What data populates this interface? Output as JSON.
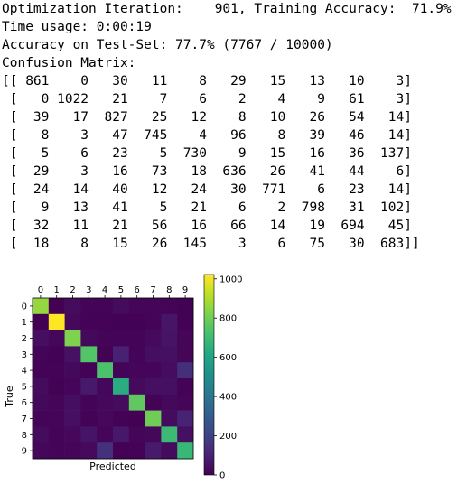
{
  "output": {
    "lines": [
      "Optimization Iteration:    901, Training Accuracy:  71.9%",
      "Time usage: 0:00:19",
      "Accuracy on Test-Set: 77.7% (7767 / 10000)",
      "Confusion Matrix:",
      "[[ 861    0   30   11    8   29   15   13   10    3]",
      " [   0 1022   21    7    6    2    4    9   61    3]",
      " [  39   17  827   25   12    8   10   26   54   14]",
      " [   8    3   47  745    4   96    8   39   46   14]",
      " [   5    6   23    5  730    9   15   16   36  137]",
      " [  29    3   16   73   18  636   26   41   44    6]",
      " [  24   14   40   12   24   30  771    6   23   14]",
      " [   9   13   41    5   21    6    2  798   31  102]",
      " [  32   11   21   56   16   66   14   19  694   45]",
      " [  18    8   15   26  145    3    6   75   30  683]]"
    ]
  },
  "chart_data": {
    "type": "heatmap",
    "x_categories": [
      "0",
      "1",
      "2",
      "3",
      "4",
      "5",
      "6",
      "7",
      "8",
      "9"
    ],
    "y_categories": [
      "0",
      "1",
      "2",
      "3",
      "4",
      "5",
      "6",
      "7",
      "8",
      "9"
    ],
    "xlabel": "Predicted",
    "ylabel": "True",
    "values": [
      [
        861,
        0,
        30,
        11,
        8,
        29,
        15,
        13,
        10,
        3
      ],
      [
        0,
        1022,
        21,
        7,
        6,
        2,
        4,
        9,
        61,
        3
      ],
      [
        39,
        17,
        827,
        25,
        12,
        8,
        10,
        26,
        54,
        14
      ],
      [
        8,
        3,
        47,
        745,
        4,
        96,
        8,
        39,
        46,
        14
      ],
      [
        5,
        6,
        23,
        5,
        730,
        9,
        15,
        16,
        36,
        137
      ],
      [
        29,
        3,
        16,
        73,
        18,
        636,
        26,
        41,
        44,
        6
      ],
      [
        24,
        14,
        40,
        12,
        24,
        30,
        771,
        6,
        23,
        14
      ],
      [
        9,
        13,
        41,
        5,
        21,
        6,
        2,
        798,
        31,
        102
      ],
      [
        32,
        11,
        21,
        56,
        16,
        66,
        14,
        19,
        694,
        45
      ],
      [
        18,
        8,
        15,
        26,
        145,
        3,
        6,
        75,
        30,
        683
      ]
    ],
    "colorbar": {
      "range": [
        0,
        1022
      ],
      "ticks": [
        0,
        200,
        400,
        600,
        800,
        1000
      ],
      "tick_labels": [
        "0",
        "200",
        "400",
        "600",
        "800",
        "1000"
      ],
      "colormap": "viridis"
    }
  }
}
